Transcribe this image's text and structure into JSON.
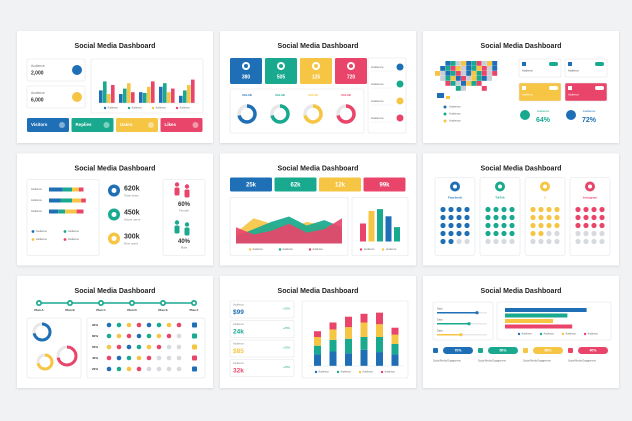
{
  "slides": [
    {
      "title": "Social Media Dashboard",
      "stats": [
        {
          "label": "Audience",
          "value": "2,000"
        },
        {
          "label": "Audience",
          "value": "6,000"
        }
      ],
      "chart": {
        "type": "bar",
        "ylim": [
          0,
          100
        ],
        "series": [
          {
            "name": "Audience",
            "color": "#1e6fb5",
            "values": [
              35,
              25,
              30,
              45,
              20
            ]
          },
          {
            "name": "Audience",
            "color": "#19a98f",
            "values": [
              60,
              40,
              28,
              55,
              35
            ]
          },
          {
            "name": "Audience",
            "color": "#f6c544",
            "values": [
              25,
              55,
              45,
              30,
              50
            ]
          },
          {
            "name": "Audience",
            "color": "#e9456a",
            "values": [
              50,
              30,
              60,
              40,
              65
            ]
          }
        ]
      },
      "tiles": [
        "Visitors",
        "Replies",
        "Users",
        "Likes"
      ]
    },
    {
      "title": "Social Media Dashboard",
      "cards": [
        "380",
        "505",
        "125",
        "720"
      ],
      "donuts": [
        "VALUE",
        "VALUE",
        "VALUE",
        "VALUE"
      ],
      "list": [
        "Audience",
        "Audience",
        "Audience",
        "Audience"
      ]
    },
    {
      "title": "Social Media Dashboard",
      "legend": [
        "Audience",
        "Audience",
        "Audience"
      ],
      "toggles": [
        "Audience",
        "Audience",
        "Audience",
        "Audience"
      ],
      "metrics": [
        {
          "label": "Audience",
          "value": "64%"
        },
        {
          "label": "Audience",
          "value": "72%"
        }
      ]
    },
    {
      "title": "Social Media Dashboard",
      "chart": {
        "type": "stacked-bar-h",
        "xlim": [
          0,
          100
        ],
        "categories": [
          "Audience",
          "Audience",
          "Audience"
        ],
        "series": [
          {
            "name": "Audience",
            "color": "#1e6fb5",
            "values": [
              30,
              25,
              20
            ]
          },
          {
            "name": "Audience",
            "color": "#19a98f",
            "values": [
              20,
              25,
              15
            ]
          },
          {
            "name": "Audience",
            "color": "#f6c544",
            "values": [
              15,
              20,
              25
            ]
          },
          {
            "name": "Audience",
            "color": "#e9456a",
            "values": [
              10,
              10,
              15
            ]
          }
        ]
      },
      "stats": [
        {
          "value": "620k",
          "label": "Total views"
        },
        {
          "value": "450k",
          "label": "Active users"
        },
        {
          "value": "300k",
          "label": "New users"
        }
      ],
      "gender": [
        {
          "value": "60%",
          "label": "Female"
        },
        {
          "value": "40%",
          "label": "Male"
        }
      ]
    },
    {
      "title": "Social Media Dashboard",
      "cards": [
        "25k",
        "62k",
        "12k",
        "99k"
      ],
      "area": {
        "type": "area",
        "ylim": [
          0,
          100
        ],
        "series": [
          {
            "name": "Audience",
            "color": "#f6c544",
            "values": [
              30,
              70,
              55,
              40,
              60,
              50,
              35
            ]
          },
          {
            "name": "Audience",
            "color": "#19a98f",
            "values": [
              20,
              40,
              60,
              75,
              50,
              65,
              45
            ]
          },
          {
            "name": "Audience",
            "color": "#e9456a",
            "values": [
              45,
              25,
              35,
              55,
              30,
              40,
              70
            ]
          }
        ]
      },
      "bars": {
        "type": "bar",
        "ylim": [
          0,
          100
        ],
        "values": [
          50,
          85,
          90,
          70,
          40
        ],
        "colors": [
          "#e9456a",
          "#f6c544",
          "#19a98f",
          "#1e6fb5",
          "#19a98f"
        ],
        "legend": [
          "Audience",
          "Audience"
        ]
      }
    },
    {
      "title": "Social Media Dashboard",
      "platforms": [
        "Facebook",
        "TikTok",
        "X",
        "Instagram"
      ]
    },
    {
      "title": "Social Media Dashboard",
      "plans": [
        "Plan A",
        "Plan B",
        "Plan C",
        "Plan D",
        "Plan E",
        "Plan F"
      ],
      "rows": [
        "90%",
        "80%",
        "60%",
        "40%",
        "20%"
      ]
    },
    {
      "title": "Social Media Dashboard",
      "stats": [
        {
          "label": "Audience",
          "value": "$99",
          "change": "+25%"
        },
        {
          "label": "Audience",
          "value": "24k",
          "change": "+25%"
        },
        {
          "label": "Audience",
          "value": "$85",
          "change": "+25%"
        },
        {
          "label": "Audience",
          "value": "32k",
          "change": "+25%"
        }
      ],
      "chart": {
        "type": "stacked-bar",
        "ylim": [
          0,
          100
        ],
        "series": [
          {
            "name": "Audience",
            "color": "#1e6fb5",
            "values": [
              20,
              25,
              22,
              28,
              24,
              20
            ]
          },
          {
            "name": "Audience",
            "color": "#19a98f",
            "values": [
              15,
              20,
              25,
              22,
              26,
              18
            ]
          },
          {
            "name": "Audience",
            "color": "#f6c544",
            "values": [
              15,
              18,
              20,
              25,
              22,
              16
            ]
          },
          {
            "name": "Audience",
            "color": "#e9456a",
            "values": [
              10,
              12,
              18,
              15,
              20,
              12
            ]
          }
        ]
      }
    },
    {
      "title": "Social Media Dashboard",
      "rows": [
        "Data",
        "Data",
        "Data"
      ],
      "chart": {
        "type": "bar-h",
        "xlim": [
          0,
          100
        ],
        "series": [
          {
            "name": "Audience",
            "color": "#1e6fb5",
            "values": [
              85
            ]
          },
          {
            "name": "Audience",
            "color": "#19a98f",
            "values": [
              65
            ]
          },
          {
            "name": "Audience",
            "color": "#f6c544",
            "values": [
              50
            ]
          },
          {
            "name": "Audience",
            "color": "#e9456a",
            "values": [
              70
            ]
          }
        ]
      },
      "badges": [
        {
          "value": "70%",
          "label": "Social Media Engagement"
        },
        {
          "value": "50%",
          "label": "Social Media Engagement"
        },
        {
          "value": "65%",
          "label": "Social Media Engagement"
        },
        {
          "value": "40%",
          "label": "Social Media Engagement"
        }
      ]
    }
  ]
}
